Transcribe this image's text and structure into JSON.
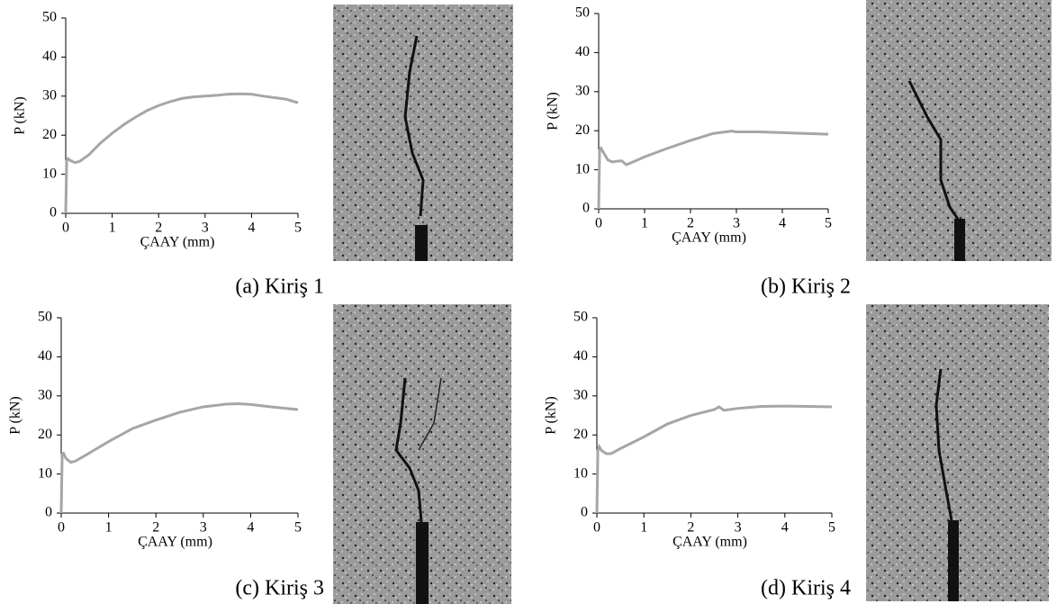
{
  "chart_data": [
    {
      "type": "line",
      "caption": "(a) Kiriş 1",
      "x_label": "ÇAAY (mm)",
      "y_label": "P (kN)",
      "xlim": [
        0,
        5
      ],
      "xticks": [
        0,
        1,
        2,
        3,
        4,
        5
      ],
      "ylim": [
        0,
        50
      ],
      "yticks": [
        0,
        10,
        20,
        30,
        40,
        50
      ],
      "color": "#a6a6a6",
      "x": [
        0,
        0.02,
        0.05,
        0.1,
        0.2,
        0.3,
        0.5,
        0.75,
        1,
        1.25,
        1.5,
        1.75,
        2,
        2.25,
        2.5,
        2.75,
        3,
        3.25,
        3.5,
        3.75,
        4,
        4.25,
        4.5,
        4.75,
        5
      ],
      "values": [
        0,
        13.5,
        14,
        13.5,
        13,
        13.3,
        15,
        18,
        20.5,
        22.7,
        24.6,
        26.3,
        27.6,
        28.6,
        29.4,
        29.8,
        30,
        30.2,
        30.5,
        30.6,
        30.5,
        30,
        29.6,
        29.2,
        28.3
      ]
    },
    {
      "type": "line",
      "caption": "(b) Kiriş 2",
      "x_label": "ÇAAY (mm)",
      "y_label": "P (kN)",
      "xlim": [
        0,
        5
      ],
      "xticks": [
        0,
        1,
        2,
        3,
        4,
        5
      ],
      "ylim": [
        0,
        50
      ],
      "yticks": [
        0,
        10,
        20,
        30,
        40,
        50
      ],
      "color": "#a6a6a6",
      "x": [
        0,
        0.02,
        0.05,
        0.1,
        0.2,
        0.3,
        0.4,
        0.5,
        0.6,
        0.75,
        1,
        1.5,
        2,
        2.5,
        2.9,
        3,
        3.5,
        4,
        4.5,
        5
      ],
      "values": [
        0,
        15,
        15.5,
        14.5,
        12.5,
        12,
        12.2,
        12.3,
        11.3,
        12,
        13.3,
        15.5,
        17.5,
        19.3,
        19.9,
        19.7,
        19.7,
        19.5,
        19.3,
        19.1
      ]
    },
    {
      "type": "line",
      "caption": "(c) Kiriş 3",
      "x_label": "ÇAAY (mm)",
      "y_label": "P (kN)",
      "xlim": [
        0,
        5
      ],
      "xticks": [
        0,
        1,
        2,
        3,
        4,
        5
      ],
      "ylim": [
        0,
        50
      ],
      "yticks": [
        0,
        10,
        20,
        30,
        40,
        50
      ],
      "color": "#a6a6a6",
      "x": [
        0,
        0.02,
        0.05,
        0.1,
        0.2,
        0.3,
        0.5,
        0.75,
        1,
        1.5,
        2,
        2.5,
        3,
        3.5,
        3.75,
        4,
        4.5,
        5
      ],
      "values": [
        0,
        15,
        15.3,
        14,
        13,
        13.3,
        14.7,
        16.5,
        18.3,
        21.6,
        23.8,
        25.8,
        27.2,
        27.9,
        28,
        27.8,
        27.1,
        26.5
      ]
    },
    {
      "type": "line",
      "caption": "(d) Kiriş 4",
      "x_label": "ÇAAY (mm)",
      "y_label": "P (kN)",
      "xlim": [
        0,
        5
      ],
      "xticks": [
        0,
        1,
        2,
        3,
        4,
        5
      ],
      "ylim": [
        0,
        50
      ],
      "yticks": [
        0,
        10,
        20,
        30,
        40,
        50
      ],
      "color": "#a6a6a6",
      "x": [
        0,
        0.02,
        0.05,
        0.1,
        0.2,
        0.3,
        0.5,
        1,
        1.5,
        2,
        2.5,
        2.6,
        2.7,
        3,
        3.5,
        4,
        4.5,
        5
      ],
      "values": [
        0,
        16,
        17,
        16,
        15.2,
        15.2,
        16.5,
        19.5,
        22.8,
        25,
        26.5,
        27.2,
        26.3,
        26.8,
        27.3,
        27.4,
        27.3,
        27.2
      ]
    }
  ]
}
